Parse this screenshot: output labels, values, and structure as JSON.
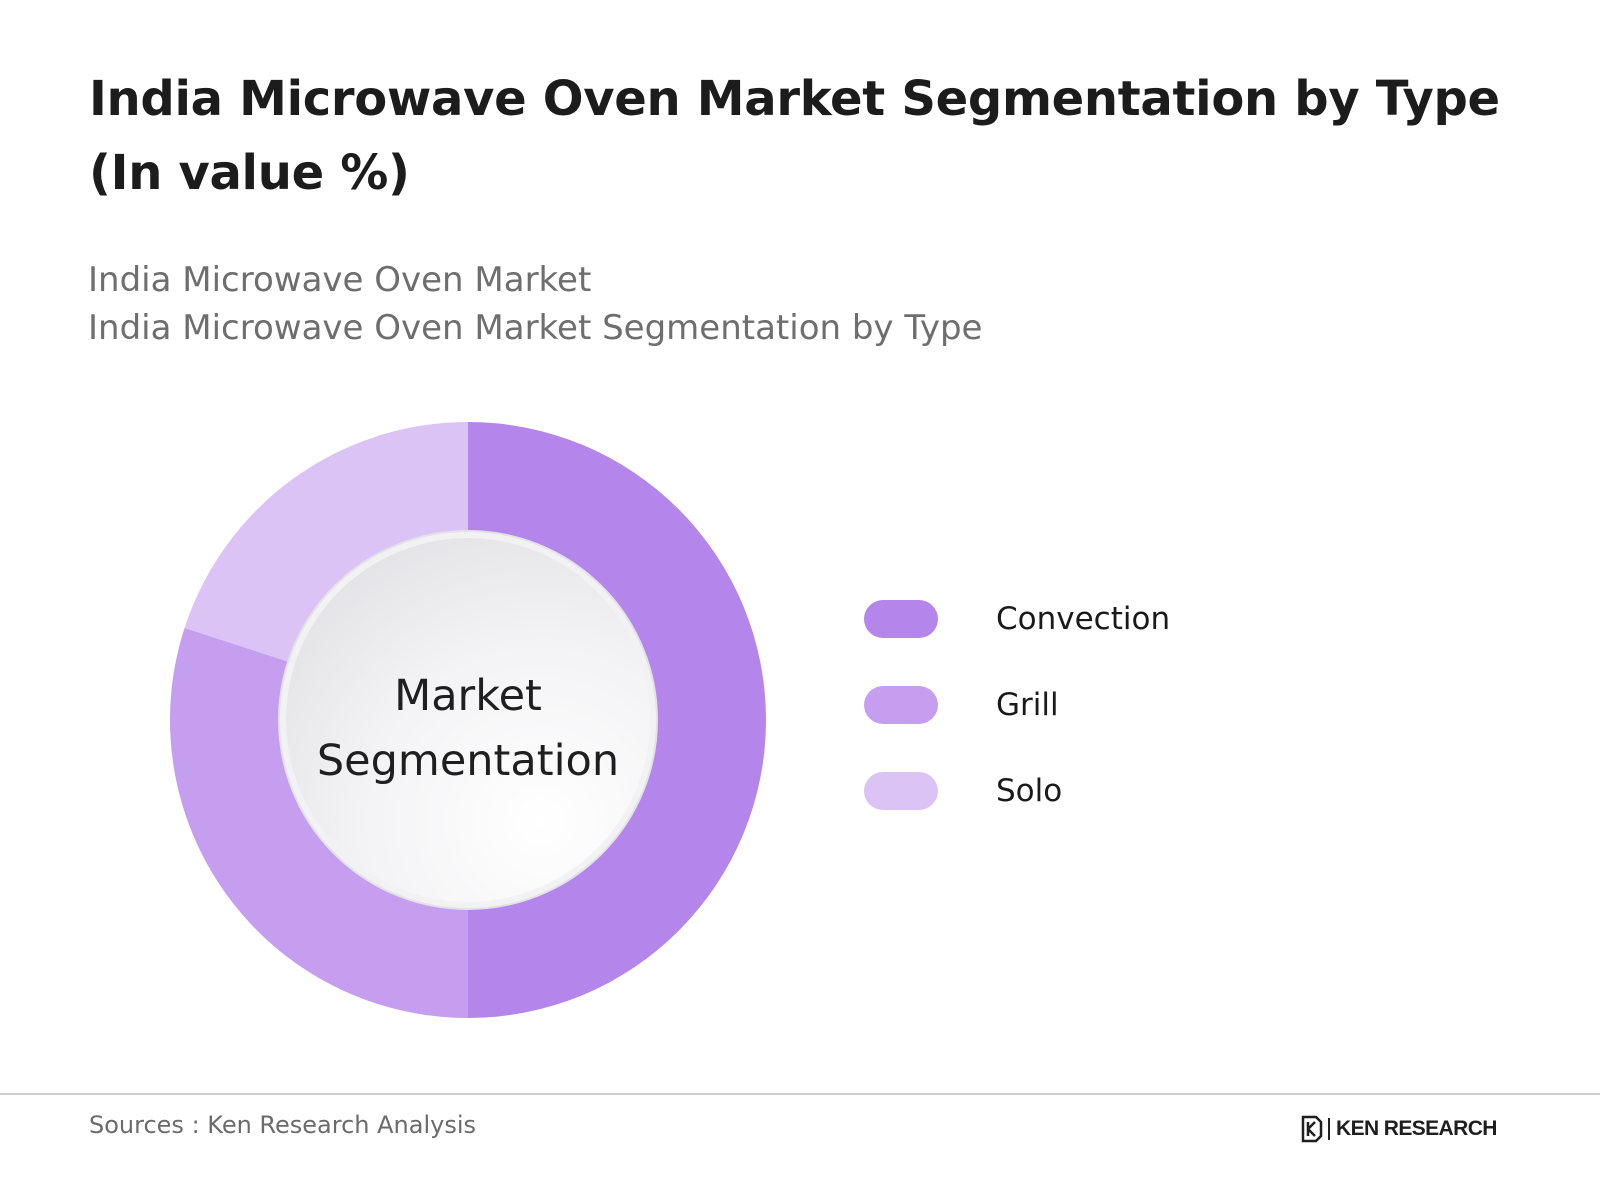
{
  "header": {
    "title": "India Microwave Oven Market Segmentation by Type (In value %)",
    "subtitle_line1": "India Microwave Oven Market",
    "subtitle_line2": "India Microwave Oven Market Segmentation by Type"
  },
  "chart_data": {
    "type": "pie",
    "variant": "donut",
    "center_label_line1": "Market",
    "center_label_line2": "Segmentation",
    "categories": [
      "Convection",
      "Grill",
      "Solo"
    ],
    "values": [
      50,
      30,
      20
    ],
    "unit": "%",
    "colors": [
      "#b485eb",
      "#c69ef0",
      "#dcc3f6"
    ],
    "legend_position": "right",
    "start_angle": "12 o'clock, clockwise"
  },
  "footer": {
    "source": "Sources : Ken Research Analysis",
    "brand_name": "KEN RESEARCH"
  }
}
